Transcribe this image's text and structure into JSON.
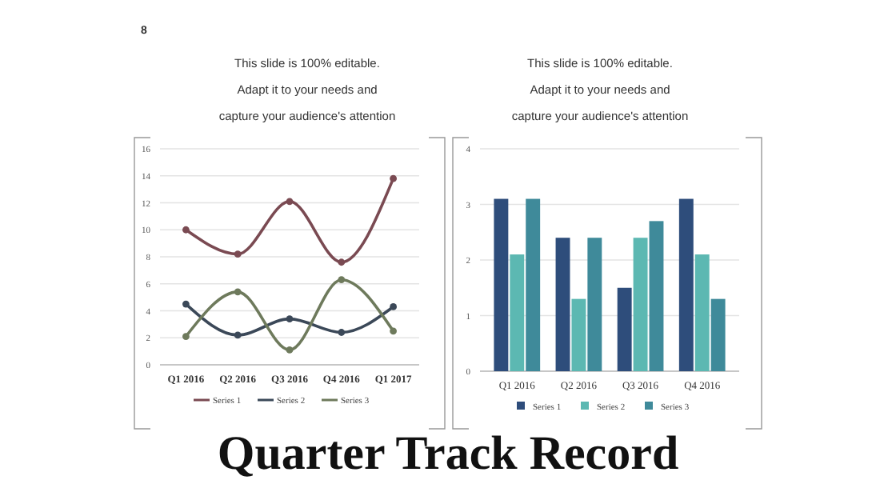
{
  "chart_data": [
    {
      "type": "line",
      "title": "This slide is 100% editable. Adapt it to your needs and capture your audience's attention",
      "categories": [
        "Q1 2016",
        "Q2 2016",
        "Q3 2016",
        "Q4 2016",
        "Q1 2017"
      ],
      "series": [
        {
          "name": "Series 1",
          "color": "#7a4a52",
          "values": [
            10,
            8.2,
            12.1,
            7.6,
            13.8
          ]
        },
        {
          "name": "Series 2",
          "color": "#3b4858",
          "values": [
            4.5,
            2.2,
            3.4,
            2.4,
            4.3
          ]
        },
        {
          "name": "Series 3",
          "color": "#6e7a5c",
          "values": [
            2.1,
            5.4,
            1.1,
            6.3,
            2.5
          ]
        }
      ],
      "ylim": [
        0,
        16
      ],
      "yticks": [
        0,
        2,
        4,
        6,
        8,
        10,
        12,
        14,
        16
      ],
      "grid": "y",
      "legend": "bottom",
      "marker": "circle",
      "line_style": "solid",
      "annotations": [
        "8",
        "Quarter Track Record"
      ]
    },
    {
      "type": "bar",
      "title": "This slide is 100% editable. Adapt it to your needs and capture your audience's attention",
      "categories": [
        "Q1 2016",
        "Q2 2016",
        "Q3 2016",
        "Q4 2016"
      ],
      "series": [
        {
          "name": "Series 1",
          "color": "#2e4d7b",
          "values": [
            3.1,
            2.4,
            1.5,
            3.1
          ]
        },
        {
          "name": "Series 2",
          "color": "#5cb8b2",
          "values": [
            2.1,
            1.3,
            2.4,
            2.1
          ]
        },
        {
          "name": "Series 3",
          "color": "#3f8a9a",
          "values": [
            3.1,
            2.4,
            2.7,
            1.3
          ]
        }
      ],
      "ylim": [
        0,
        4
      ],
      "yticks": [
        0,
        1,
        2,
        3,
        4
      ],
      "grid": "y",
      "legend": "bottom"
    }
  ]
}
